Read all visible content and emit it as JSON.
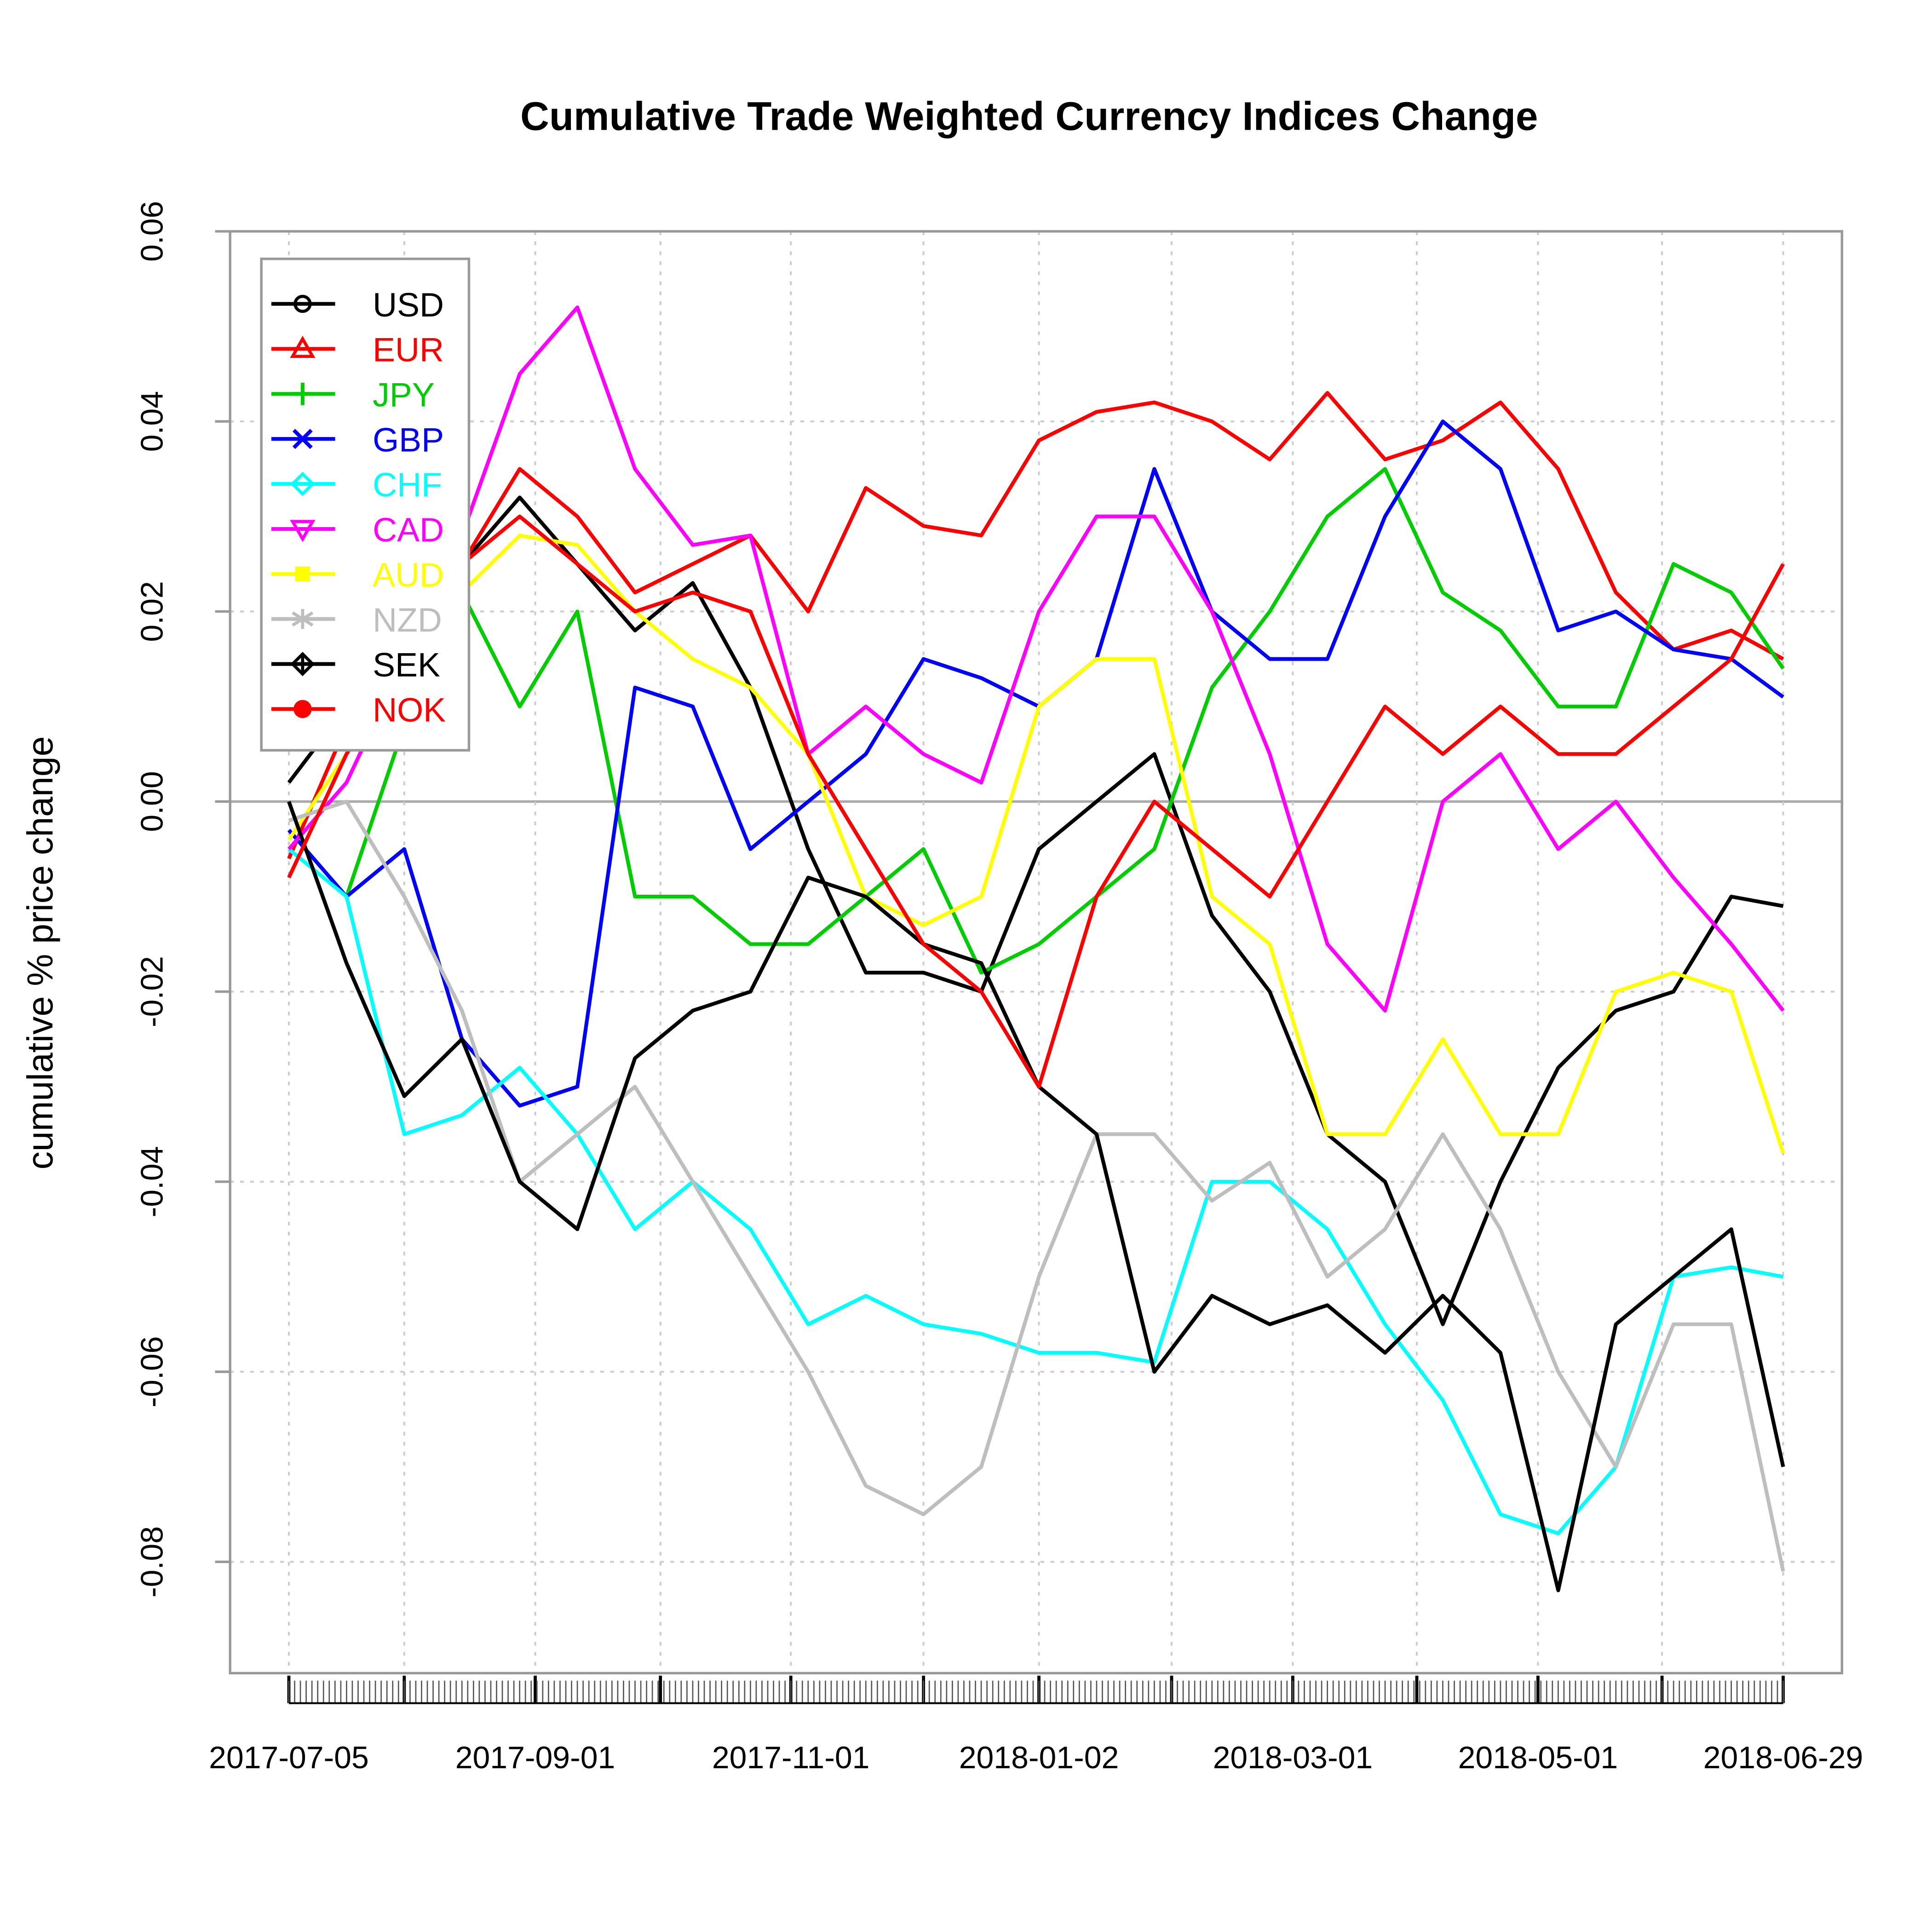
{
  "chart_data": {
    "type": "line",
    "title": "Cumulative Trade Weighted Currency Indices Change",
    "xlabel": "",
    "ylabel": "cumulative % price change",
    "ylim": [
      -0.092,
      0.06
    ],
    "xlim": [
      0,
      259
    ],
    "y_ticks": [
      0.06,
      0.04,
      0.02,
      0.0,
      -0.02,
      -0.04,
      -0.06,
      -0.08
    ],
    "y_tick_labels": [
      "0.06",
      "0.04",
      "0.02",
      "0.00",
      "-0.02",
      "-0.04",
      "-0.06",
      "-0.08"
    ],
    "x_ticks": [
      0,
      42.7,
      87,
      130,
      174,
      216.5,
      259
    ],
    "x_tick_labels": [
      "2017-07-05",
      "2017-09-01",
      "2017-11-01",
      "2018-01-02",
      "2018-03-01",
      "2018-05-01",
      "2018-06-29"
    ],
    "x_grid": [
      0,
      20,
      42.7,
      64.4,
      87,
      110,
      130,
      153,
      174,
      195.5,
      216.5,
      238,
      259
    ],
    "grid": true,
    "legend_position": "top-left",
    "x": [
      0,
      10,
      20,
      30,
      40,
      50,
      60,
      70,
      80,
      90,
      100,
      110,
      120,
      130,
      140,
      150,
      160,
      170,
      180,
      190,
      200,
      210,
      220,
      230,
      240,
      250,
      259
    ],
    "series": [
      {
        "name": "USD",
        "color": "#000000",
        "values": [
          0.002,
          0.01,
          0.022,
          0.025,
          0.032,
          0.025,
          0.018,
          0.023,
          0.012,
          -0.005,
          -0.018,
          -0.018,
          -0.02,
          -0.005,
          0.0,
          0.005,
          -0.012,
          -0.02,
          -0.035,
          -0.04,
          -0.055,
          -0.04,
          -0.028,
          -0.022,
          -0.02,
          -0.01,
          -0.011
        ]
      },
      {
        "name": "EUR",
        "color": "#ff0000",
        "values": [
          -0.006,
          0.008,
          0.018,
          0.025,
          0.035,
          0.03,
          0.022,
          0.025,
          0.028,
          0.02,
          0.033,
          0.029,
          0.028,
          0.038,
          0.041,
          0.042,
          0.04,
          0.036,
          0.043,
          0.036,
          0.038,
          0.042,
          0.035,
          0.022,
          0.016,
          0.018,
          0.015
        ]
      },
      {
        "name": "JPY",
        "color": "#00cd00",
        "values": [
          -0.003,
          -0.01,
          0.008,
          0.022,
          0.01,
          0.02,
          -0.01,
          -0.01,
          -0.015,
          -0.015,
          -0.01,
          -0.005,
          -0.018,
          -0.015,
          -0.01,
          -0.005,
          0.012,
          0.02,
          0.03,
          0.035,
          0.022,
          0.018,
          0.01,
          0.01,
          0.025,
          0.022,
          0.014
        ]
      },
      {
        "name": "GBP",
        "color": "#0000ff",
        "values": [
          -0.003,
          -0.01,
          -0.005,
          -0.025,
          -0.032,
          -0.03,
          0.012,
          0.01,
          -0.005,
          0.0,
          0.005,
          0.015,
          0.013,
          0.01,
          0.015,
          0.035,
          0.02,
          0.015,
          0.015,
          0.03,
          0.04,
          0.035,
          0.018,
          0.02,
          0.016,
          0.015,
          0.011
        ]
      },
      {
        "name": "CHF",
        "color": "#00ffff",
        "values": [
          -0.005,
          -0.01,
          -0.035,
          -0.033,
          -0.028,
          -0.035,
          -0.045,
          -0.04,
          -0.045,
          -0.055,
          -0.052,
          -0.055,
          -0.056,
          -0.058,
          -0.058,
          -0.059,
          -0.04,
          -0.04,
          -0.045,
          -0.055,
          -0.063,
          -0.075,
          -0.077,
          -0.07,
          -0.05,
          -0.049,
          -0.05
        ]
      },
      {
        "name": "CAD",
        "color": "#ff00ff",
        "values": [
          -0.005,
          0.002,
          0.015,
          0.028,
          0.045,
          0.052,
          0.035,
          0.027,
          0.028,
          0.005,
          0.01,
          0.005,
          0.002,
          0.02,
          0.03,
          0.03,
          0.02,
          0.005,
          -0.015,
          -0.022,
          0.0,
          0.005,
          -0.005,
          0.0,
          -0.008,
          -0.015,
          -0.022
        ]
      },
      {
        "name": "AUD",
        "color": "#ffff00",
        "values": [
          -0.004,
          0.005,
          0.015,
          0.022,
          0.028,
          0.027,
          0.02,
          0.015,
          0.012,
          0.005,
          -0.01,
          -0.013,
          -0.01,
          0.01,
          0.015,
          0.015,
          -0.01,
          -0.015,
          -0.035,
          -0.035,
          -0.025,
          -0.035,
          -0.035,
          -0.02,
          -0.018,
          -0.02,
          -0.037
        ]
      },
      {
        "name": "NZD",
        "color": "#bebebe",
        "values": [
          -0.002,
          0.0,
          -0.01,
          -0.022,
          -0.04,
          -0.035,
          -0.03,
          -0.04,
          -0.05,
          -0.06,
          -0.072,
          -0.075,
          -0.07,
          -0.05,
          -0.035,
          -0.035,
          -0.042,
          -0.038,
          -0.05,
          -0.045,
          -0.035,
          -0.045,
          -0.06,
          -0.07,
          -0.055,
          -0.055,
          -0.081
        ]
      },
      {
        "name": "SEK",
        "color": "#000000",
        "values": [
          0.0,
          -0.017,
          -0.031,
          -0.025,
          -0.04,
          -0.045,
          -0.027,
          -0.022,
          -0.02,
          -0.008,
          -0.01,
          -0.015,
          -0.017,
          -0.03,
          -0.035,
          -0.06,
          -0.052,
          -0.055,
          -0.053,
          -0.058,
          -0.052,
          -0.058,
          -0.083,
          -0.055,
          -0.05,
          -0.045,
          -0.07
        ]
      },
      {
        "name": "NOK",
        "color": "#ff0000",
        "values": [
          -0.008,
          0.005,
          0.015,
          0.025,
          0.03,
          0.025,
          0.02,
          0.022,
          0.02,
          0.005,
          -0.005,
          -0.015,
          -0.02,
          -0.03,
          -0.01,
          0.0,
          -0.005,
          -0.01,
          0.0,
          0.01,
          0.005,
          0.01,
          0.005,
          0.005,
          0.01,
          0.015,
          0.025
        ]
      }
    ],
    "legend_markers": [
      "circle",
      "triangle",
      "plus",
      "cross",
      "diamond",
      "triangle-down",
      "square",
      "asterisk",
      "diamond-plus",
      "circle-plus"
    ]
  }
}
